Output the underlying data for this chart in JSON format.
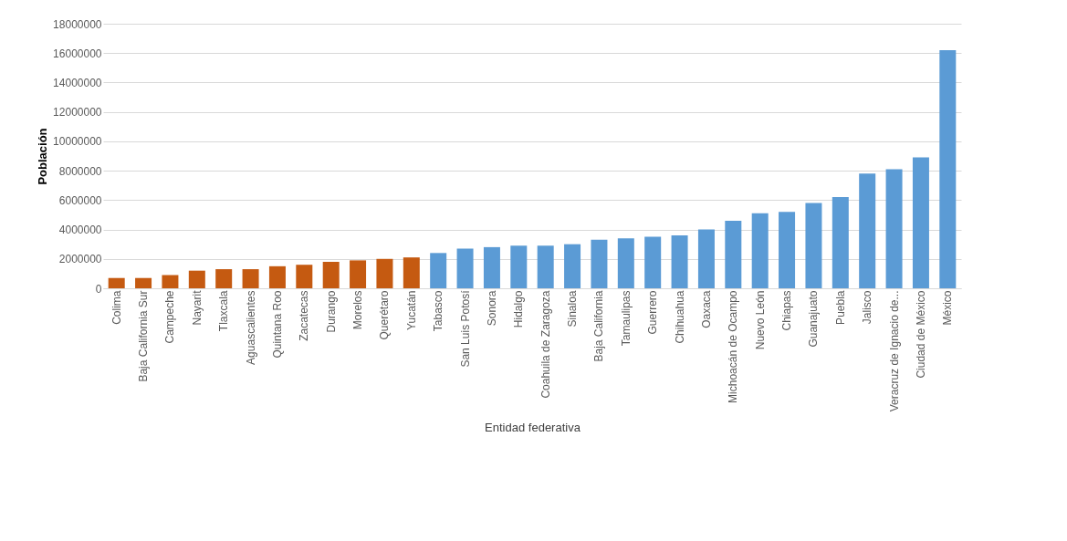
{
  "chart_data": {
    "type": "bar",
    "xlabel": "Entidad federativa",
    "ylabel": "Población",
    "categories": [
      "Colima",
      "Baja California Sur",
      "Campeche",
      "Nayarit",
      "Tlaxcala",
      "Aguascalientes",
      "Quintana Roo",
      "Zacatecas",
      "Durango",
      "Morelos",
      "Querétaro",
      "Yucatán",
      "Tabasco",
      "San Luis Potosí",
      "Sonora",
      "Hidalgo",
      "Coahuila de Zaragoza",
      "Sinaloa",
      "Baja California",
      "Tamaulipas",
      "Guerrero",
      "Chihuahua",
      "Oaxaca",
      "Michoacán de Ocampo",
      "Nuevo León",
      "Chiapas",
      "Guanajuato",
      "Puebla",
      "Jalisco",
      "Veracruz de Ignacio de...",
      "Ciudad de México",
      "México"
    ],
    "values": [
      700000,
      700000,
      900000,
      1200000,
      1300000,
      1300000,
      1500000,
      1600000,
      1800000,
      1900000,
      2000000,
      2100000,
      2400000,
      2700000,
      2800000,
      2900000,
      2900000,
      3000000,
      3300000,
      3400000,
      3500000,
      3600000,
      4000000,
      4600000,
      5100000,
      5200000,
      5800000,
      6200000,
      7800000,
      8100000,
      8900000,
      16200000
    ],
    "colors": [
      "#c55a11",
      "#c55a11",
      "#c55a11",
      "#c55a11",
      "#c55a11",
      "#c55a11",
      "#c55a11",
      "#c55a11",
      "#c55a11",
      "#c55a11",
      "#c55a11",
      "#c55a11",
      "#5b9bd5",
      "#5b9bd5",
      "#5b9bd5",
      "#5b9bd5",
      "#5b9bd5",
      "#5b9bd5",
      "#5b9bd5",
      "#5b9bd5",
      "#5b9bd5",
      "#5b9bd5",
      "#5b9bd5",
      "#5b9bd5",
      "#5b9bd5",
      "#5b9bd5",
      "#5b9bd5",
      "#5b9bd5",
      "#5b9bd5",
      "#5b9bd5",
      "#5b9bd5",
      "#5b9bd5"
    ],
    "ylim": [
      0,
      18000000
    ],
    "yticks": [
      0,
      2000000,
      4000000,
      6000000,
      8000000,
      10000000,
      12000000,
      14000000,
      16000000,
      18000000
    ],
    "grid": "y"
  }
}
